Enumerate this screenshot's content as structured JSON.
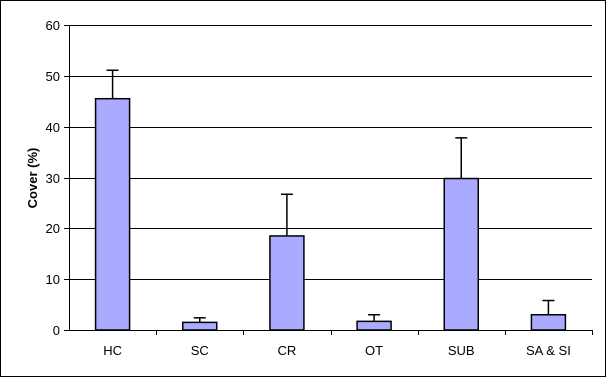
{
  "chart_data": {
    "type": "bar",
    "categories": [
      "HC",
      "SC",
      "CR",
      "OT",
      "SUB",
      "SA & SI"
    ],
    "values": [
      45.5,
      1.5,
      18.5,
      1.7,
      29.8,
      3.0
    ],
    "error_upper": [
      5.6,
      0.9,
      8.2,
      1.3,
      8.0,
      2.8
    ],
    "ylabel": "Cover (%)",
    "xlabel": "",
    "ylim": [
      0,
      60
    ],
    "yticks": [
      0,
      10,
      20,
      30,
      40,
      50,
      60
    ],
    "grid": true,
    "colors": {
      "bar_fill": "#aaaaff",
      "bar_stroke": "#000000",
      "gridline": "#000000",
      "frame": "#000000"
    }
  }
}
